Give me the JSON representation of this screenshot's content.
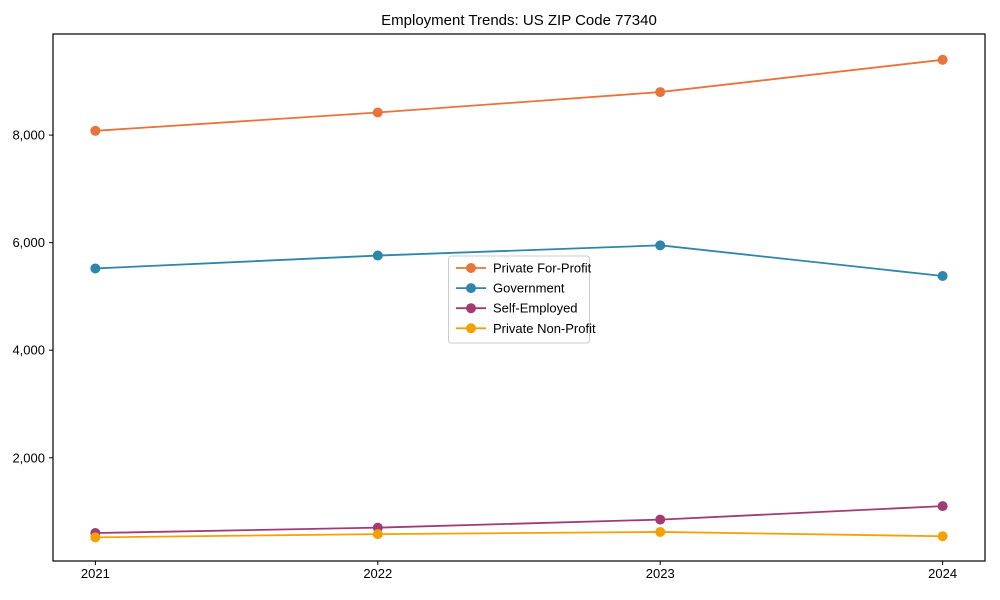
{
  "chart_data": {
    "type": "line",
    "title": "Employment Trends: US ZIP Code 77340",
    "categories": [
      "2021",
      "2022",
      "2023",
      "2024"
    ],
    "series": [
      {
        "name": "Private For-Profit",
        "color": "#E8743B",
        "values": [
          8080,
          8420,
          8800,
          9400
        ]
      },
      {
        "name": "Government",
        "color": "#2E86AB",
        "values": [
          5520,
          5760,
          5950,
          5380
        ]
      },
      {
        "name": "Self-Employed",
        "color": "#A23B72",
        "values": [
          600,
          700,
          850,
          1100
        ]
      },
      {
        "name": "Private Non-Profit",
        "color": "#F5A105",
        "values": [
          520,
          580,
          620,
          540
        ]
      }
    ],
    "xlabel": "",
    "ylabel": "",
    "x_tick_labels": [
      "2021",
      "2022",
      "2023",
      "2024"
    ],
    "y_ticks": [
      2000,
      4000,
      6000,
      8000
    ],
    "y_tick_labels": [
      "2,000",
      "4,000",
      "6,000",
      "8,000"
    ],
    "ylim": [
      80,
      9880
    ],
    "grid": false,
    "legend_position": "center",
    "marker": "circle",
    "axis_color": "#000000",
    "text_color": "#000000",
    "background_color": "#ffffff"
  }
}
